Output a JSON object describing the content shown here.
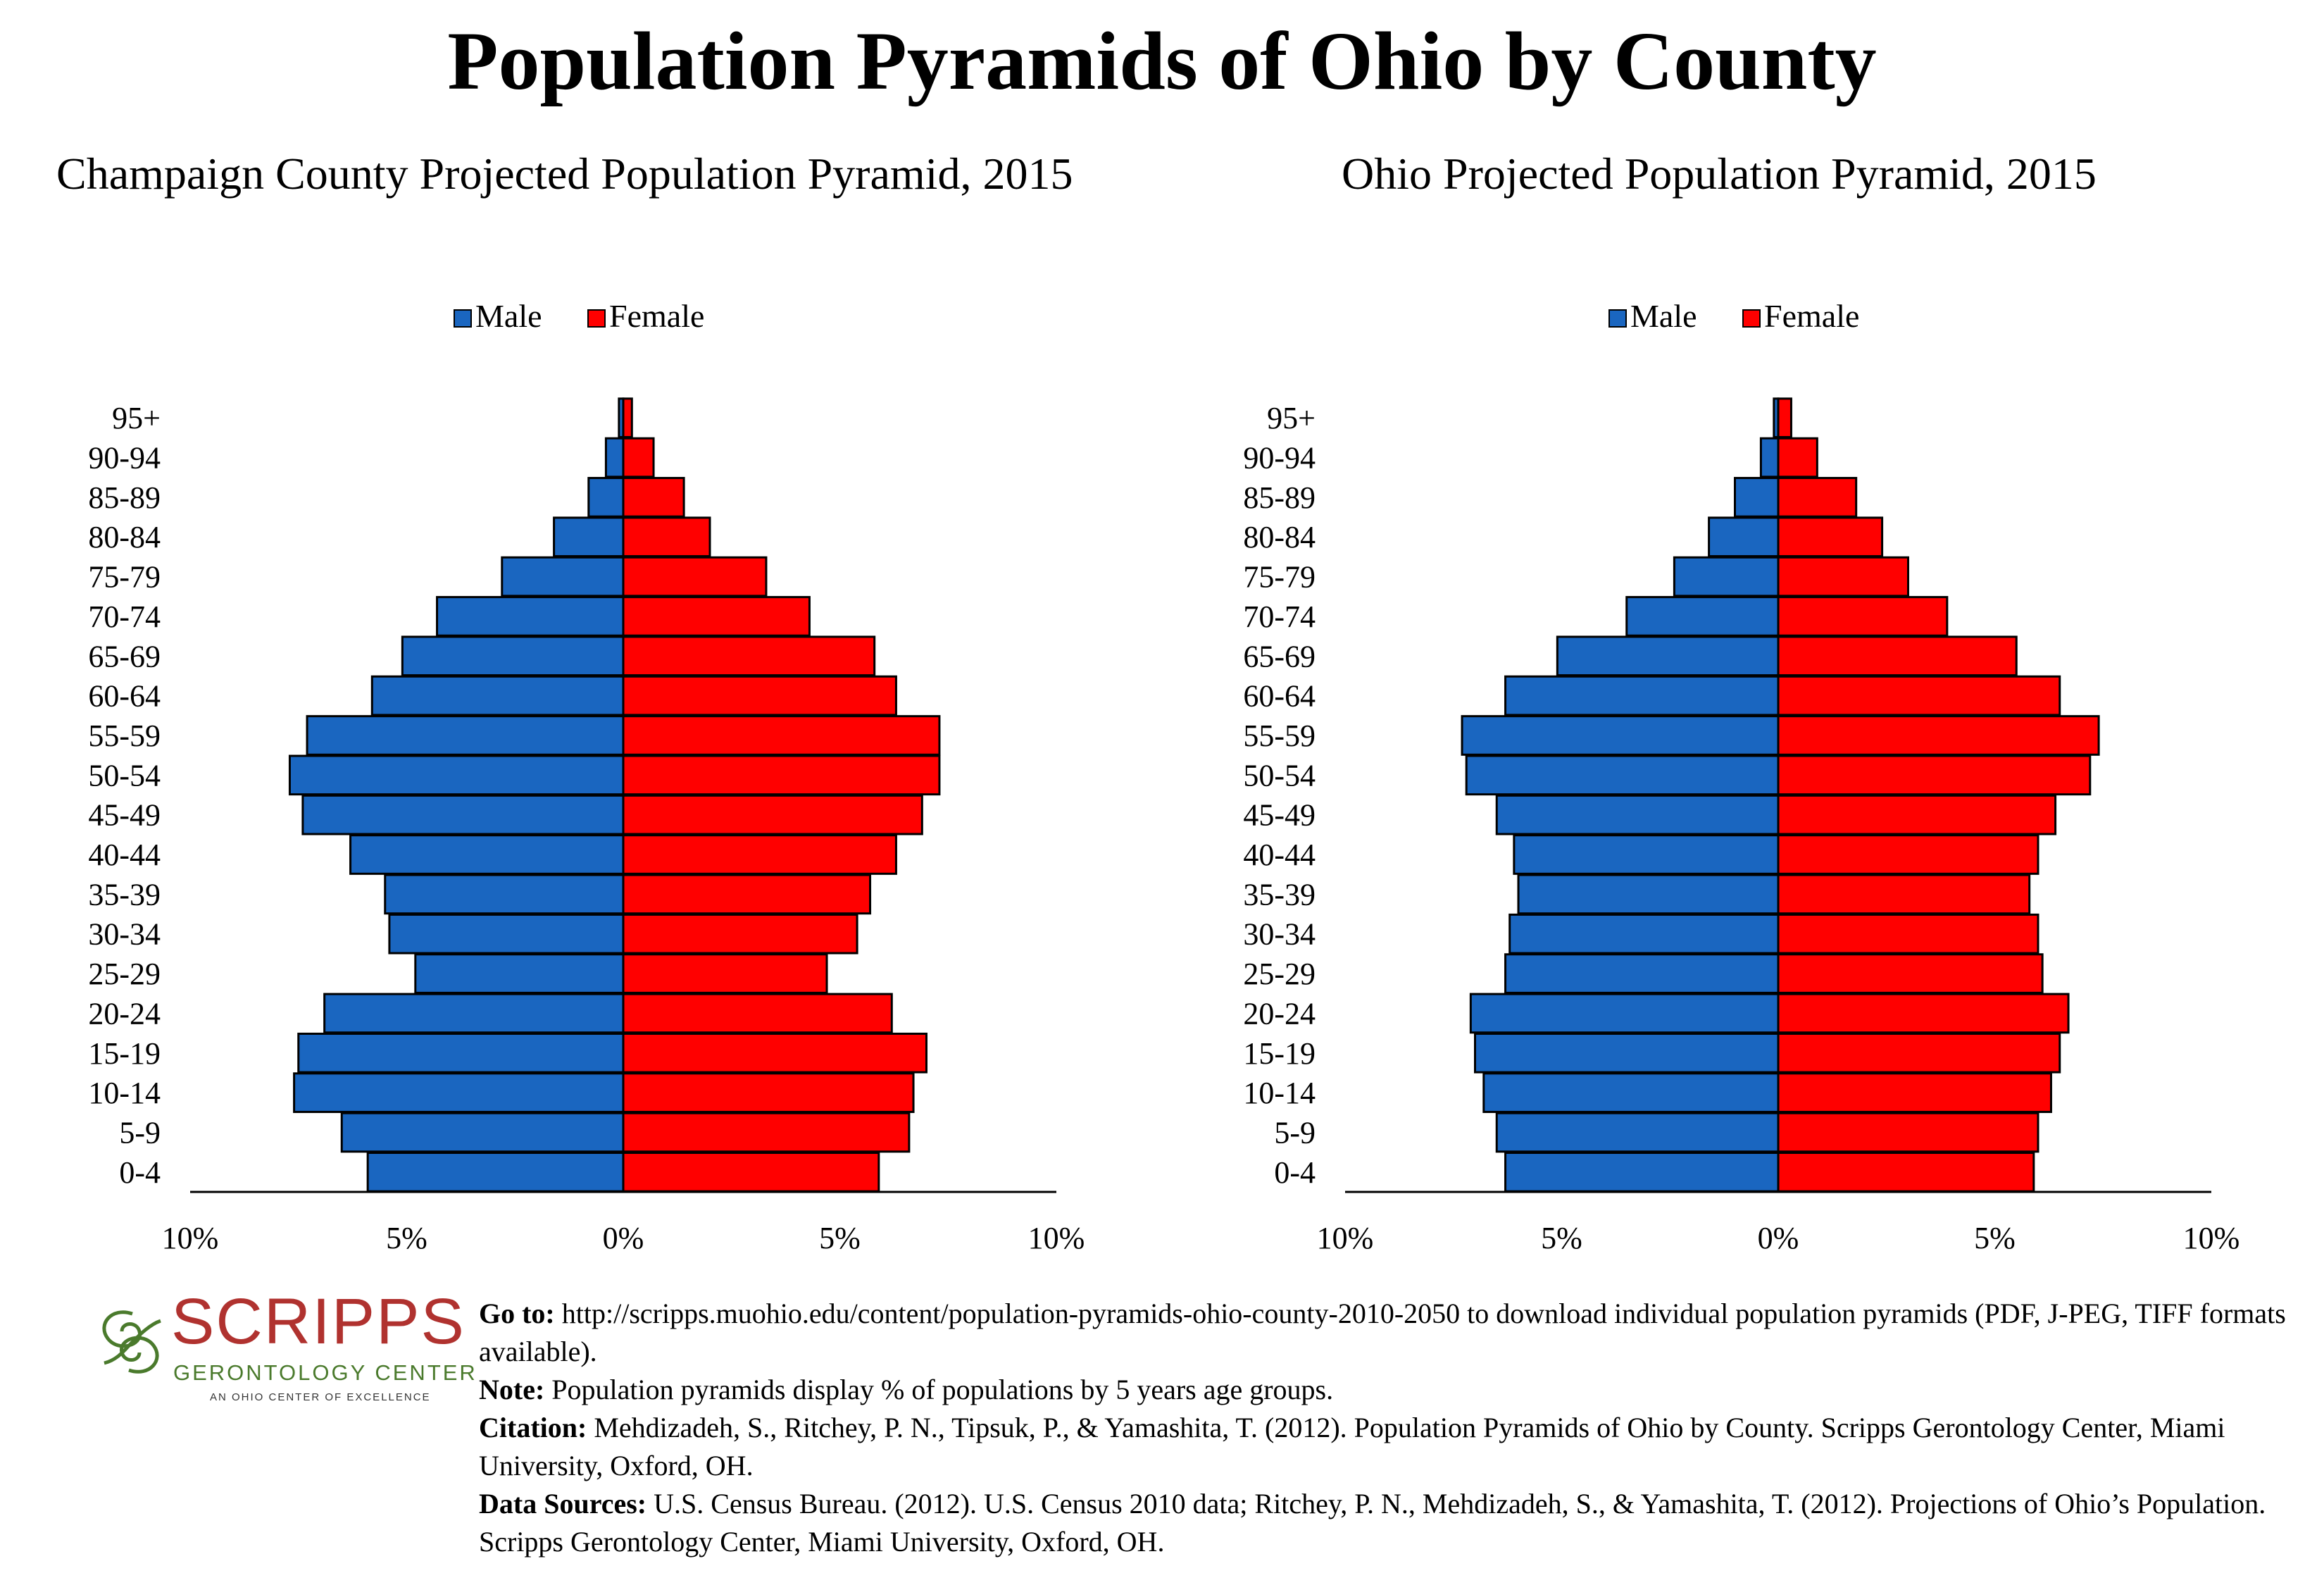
{
  "page_title": "Population Pyramids of Ohio by County",
  "chart_data": [
    {
      "type": "bar",
      "title": "Champaign County Projected Population Pyramid, 2015",
      "categories": [
        "0-4",
        "5-9",
        "10-14",
        "15-19",
        "20-24",
        "25-29",
        "30-34",
        "35-39",
        "40-44",
        "45-49",
        "50-54",
        "55-59",
        "60-64",
        "65-69",
        "70-74",
        "75-79",
        "80-84",
        "85-89",
        "90-94",
        "95+"
      ],
      "series": [
        {
          "name": "Male",
          "color": "#1a66c0",
          "values": [
            5.9,
            6.5,
            7.6,
            7.5,
            6.9,
            4.8,
            5.4,
            5.5,
            6.3,
            7.4,
            7.7,
            7.3,
            5.8,
            5.1,
            4.3,
            2.8,
            1.6,
            0.8,
            0.4,
            0.1
          ]
        },
        {
          "name": "Female",
          "color": "#ff0000",
          "values": [
            5.9,
            6.6,
            6.7,
            7.0,
            6.2,
            4.7,
            5.4,
            5.7,
            6.3,
            6.9,
            7.3,
            7.3,
            6.3,
            5.8,
            4.3,
            3.3,
            2.0,
            1.4,
            0.7,
            0.2
          ]
        }
      ],
      "x_tick_labels": [
        "10%",
        "5%",
        "0%",
        "5%",
        "10%"
      ],
      "xlim": [
        -10,
        10
      ],
      "legend_position": "top-center",
      "grid": false
    },
    {
      "type": "bar",
      "title": "Ohio Projected Population Pyramid, 2015",
      "categories": [
        "0-4",
        "5-9",
        "10-14",
        "15-19",
        "20-24",
        "25-29",
        "30-34",
        "35-39",
        "40-44",
        "45-49",
        "50-54",
        "55-59",
        "60-64",
        "65-69",
        "70-74",
        "75-79",
        "80-84",
        "85-89",
        "90-94",
        "95+"
      ],
      "series": [
        {
          "name": "Male",
          "color": "#1a66c0",
          "values": [
            6.3,
            6.5,
            6.8,
            7.0,
            7.1,
            6.3,
            6.2,
            6.0,
            6.1,
            6.5,
            7.2,
            7.3,
            6.3,
            5.1,
            3.5,
            2.4,
            1.6,
            1.0,
            0.4,
            0.1
          ]
        },
        {
          "name": "Female",
          "color": "#ff0000",
          "values": [
            5.9,
            6.0,
            6.3,
            6.5,
            6.7,
            6.1,
            6.0,
            5.8,
            6.0,
            6.4,
            7.2,
            7.4,
            6.5,
            5.5,
            3.9,
            3.0,
            2.4,
            1.8,
            0.9,
            0.3
          ]
        }
      ],
      "x_tick_labels": [
        "10%",
        "5%",
        "0%",
        "5%",
        "10%"
      ],
      "xlim": [
        -10,
        10
      ],
      "legend_position": "top-center",
      "grid": false
    }
  ],
  "logo": {
    "title": "SCRIPPS",
    "subtitle": "GERONTOLOGY CENTER",
    "tagline": "AN OHIO CENTER OF EXCELLENCE"
  },
  "notes": {
    "goto_label": "Go to:",
    "goto_text": " http://scripps.muohio.edu/content/population-pyramids-ohio-county-2010-2050 to download individual population pyramids (PDF, J-PEG, TIFF formats available).",
    "note_label": "Note:",
    "note_text": " Population pyramids display % of populations by 5 years age groups.",
    "citation_label": "Citation:",
    "citation_text": " Mehdizadeh, S., Ritchey, P. N., Tipsuk, P., & Yamashita, T. (2012). Population Pyramids of Ohio by County. Scripps Gerontology Center, Miami University, Oxford, OH.",
    "sources_label": "Data Sources:",
    "sources_text": " U.S. Census Bureau. (2012). U.S. Census 2010 data; Ritchey, P. N., Mehdizadeh, S., & Yamashita, T. (2012). Projections of Ohio’s Population. Scripps Gerontology Center, Miami University, Oxford, OH."
  }
}
